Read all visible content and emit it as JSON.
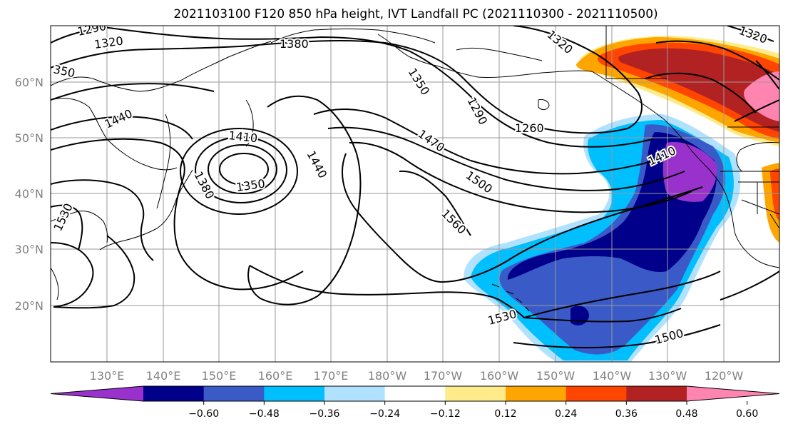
{
  "title": "2021103100 F120 850 hPa height, IVT Landfall PC (2021110300 - 2021110500)",
  "lat_labels": [
    "60°N",
    "50°N",
    "40°N",
    "30°N",
    "20°N"
  ],
  "lon_labels": [
    "130°E",
    "140°E",
    "150°E",
    "160°E",
    "170°E",
    "180°W",
    "170°W",
    "160°W",
    "150°W",
    "140°W",
    "130°W",
    "120°W"
  ],
  "contour_labels": [
    "1290",
    "1320",
    "350",
    "1380",
    "1440",
    "1410",
    "1350",
    "1380",
    "1440",
    "1530",
    "1350",
    "1290",
    "1320",
    "1260",
    "1470",
    "1500",
    "1560",
    "1410",
    "1530",
    "1500",
    "1320"
  ],
  "colorbar": {
    "ticks": [
      "−0.60",
      "−0.48",
      "−0.36",
      "−0.24",
      "−0.12",
      "0.12",
      "0.24",
      "0.36",
      "0.48",
      "0.60"
    ],
    "colors": [
      "#9932CC",
      "#00008B",
      "#3A5BC7",
      "#00BFFF",
      "#B0E2FF",
      "#FFFFFF",
      "#FFEB8A",
      "#FFA500",
      "#FF4500",
      "#B22222",
      "#FF85B0"
    ]
  }
}
